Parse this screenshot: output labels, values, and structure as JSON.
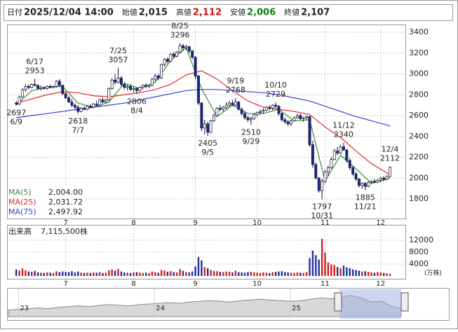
{
  "header": {
    "items": [
      {
        "label": "日付",
        "value": "2025/12/04 14:00",
        "color": "#222"
      },
      {
        "label": "始値",
        "value": "2,015",
        "color": "#222"
      },
      {
        "label": "高値",
        "value": "2,112",
        "color": "#d01010"
      },
      {
        "label": "安値",
        "value": "2,006",
        "color": "#108010"
      },
      {
        "label": "終値",
        "value": "2,107",
        "color": "#222"
      }
    ]
  },
  "chart_data": {
    "type": "candlestick",
    "xlim": [
      -3,
      126
    ],
    "xticks": [
      {
        "value": 16,
        "label": "7"
      },
      {
        "value": 38,
        "label": "8"
      },
      {
        "value": 58,
        "label": "9"
      },
      {
        "value": 78,
        "label": "10"
      },
      {
        "value": 100,
        "label": "11"
      },
      {
        "value": 118,
        "label": "12"
      }
    ],
    "ylim": [
      1612,
      3474
    ],
    "yticks": [
      1800,
      2000,
      2200,
      2400,
      2600,
      2800,
      3000,
      3200,
      3400
    ],
    "grid": true,
    "up_color": "#ffffff",
    "down_color": "#1c2a8a",
    "edge_color": "#111133",
    "ohlc": [
      [
        2720,
        2740,
        2697,
        2710
      ],
      [
        2710,
        2790,
        2700,
        2780
      ],
      [
        2780,
        2860,
        2770,
        2850
      ],
      [
        2850,
        2900,
        2830,
        2880
      ],
      [
        2880,
        2900,
        2850,
        2870
      ],
      [
        2870,
        2910,
        2860,
        2900
      ],
      [
        2900,
        2953,
        2880,
        2890
      ],
      [
        2890,
        2900,
        2850,
        2860
      ],
      [
        2860,
        2890,
        2840,
        2870
      ],
      [
        2870,
        2880,
        2850,
        2860
      ],
      [
        2860,
        2890,
        2850,
        2880
      ],
      [
        2880,
        2900,
        2860,
        2870
      ],
      [
        2870,
        2890,
        2860,
        2880
      ],
      [
        2880,
        2940,
        2870,
        2930
      ],
      [
        2930,
        2950,
        2880,
        2890
      ],
      [
        2890,
        2900,
        2800,
        2810
      ],
      [
        2810,
        2830,
        2760,
        2770
      ],
      [
        2770,
        2790,
        2720,
        2730
      ],
      [
        2730,
        2760,
        2680,
        2700
      ],
      [
        2700,
        2720,
        2660,
        2680
      ],
      [
        2680,
        2700,
        2618,
        2640
      ],
      [
        2640,
        2680,
        2630,
        2670
      ],
      [
        2670,
        2690,
        2650,
        2660
      ],
      [
        2660,
        2700,
        2650,
        2690
      ],
      [
        2690,
        2710,
        2670,
        2680
      ],
      [
        2680,
        2720,
        2670,
        2710
      ],
      [
        2710,
        2740,
        2690,
        2700
      ],
      [
        2700,
        2760,
        2690,
        2750
      ],
      [
        2750,
        2770,
        2720,
        2730
      ],
      [
        2730,
        2760,
        2720,
        2750
      ],
      [
        2750,
        2870,
        2740,
        2860
      ],
      [
        2860,
        2960,
        2850,
        2940
      ],
      [
        2940,
        3000,
        2900,
        2920
      ],
      [
        2920,
        3057,
        2910,
        2960
      ],
      [
        2960,
        2980,
        2880,
        2900
      ],
      [
        2900,
        2920,
        2850,
        2870
      ],
      [
        2870,
        2900,
        2840,
        2880
      ],
      [
        2880,
        2900,
        2840,
        2850
      ],
      [
        2850,
        2880,
        2820,
        2860
      ],
      [
        2860,
        2870,
        2806,
        2840
      ],
      [
        2840,
        2880,
        2830,
        2870
      ],
      [
        2870,
        2900,
        2850,
        2890
      ],
      [
        2890,
        2910,
        2860,
        2880
      ],
      [
        2880,
        2900,
        2860,
        2890
      ],
      [
        2890,
        2960,
        2880,
        2950
      ],
      [
        2950,
        3000,
        2930,
        2980
      ],
      [
        2980,
        3000,
        2940,
        2960
      ],
      [
        2960,
        3100,
        2950,
        3090
      ],
      [
        3090,
        3150,
        3070,
        3140
      ],
      [
        3140,
        3160,
        3100,
        3120
      ],
      [
        3120,
        3200,
        3110,
        3190
      ],
      [
        3190,
        3210,
        3150,
        3170
      ],
      [
        3170,
        3220,
        3160,
        3210
      ],
      [
        3210,
        3296,
        3200,
        3270
      ],
      [
        3270,
        3290,
        3220,
        3250
      ],
      [
        3250,
        3280,
        3230,
        3260
      ],
      [
        3260,
        3270,
        3200,
        3220
      ],
      [
        3220,
        3230,
        3140,
        3160
      ],
      [
        3160,
        3170,
        2950,
        2980
      ],
      [
        2980,
        2990,
        2700,
        2720
      ],
      [
        2720,
        2730,
        2450,
        2480
      ],
      [
        2480,
        2560,
        2420,
        2520
      ],
      [
        2520,
        2540,
        2405,
        2440
      ],
      [
        2440,
        2560,
        2430,
        2550
      ],
      [
        2550,
        2620,
        2540,
        2600
      ],
      [
        2600,
        2680,
        2590,
        2670
      ],
      [
        2670,
        2700,
        2640,
        2660
      ],
      [
        2660,
        2690,
        2640,
        2680
      ],
      [
        2680,
        2730,
        2660,
        2700
      ],
      [
        2700,
        2740,
        2680,
        2720
      ],
      [
        2720,
        2750,
        2690,
        2700
      ],
      [
        2700,
        2768,
        2690,
        2730
      ],
      [
        2730,
        2740,
        2650,
        2660
      ],
      [
        2660,
        2680,
        2600,
        2620
      ],
      [
        2620,
        2640,
        2560,
        2580
      ],
      [
        2580,
        2600,
        2540,
        2560
      ],
      [
        2560,
        2590,
        2510,
        2570
      ],
      [
        2570,
        2620,
        2560,
        2610
      ],
      [
        2610,
        2640,
        2590,
        2630
      ],
      [
        2630,
        2660,
        2610,
        2640
      ],
      [
        2640,
        2670,
        2620,
        2650
      ],
      [
        2650,
        2690,
        2640,
        2680
      ],
      [
        2680,
        2700,
        2650,
        2670
      ],
      [
        2670,
        2710,
        2650,
        2700
      ],
      [
        2700,
        2729,
        2670,
        2690
      ],
      [
        2690,
        2700,
        2600,
        2620
      ],
      [
        2620,
        2630,
        2540,
        2560
      ],
      [
        2560,
        2580,
        2520,
        2540
      ],
      [
        2540,
        2560,
        2500,
        2520
      ],
      [
        2520,
        2560,
        2500,
        2550
      ],
      [
        2550,
        2590,
        2540,
        2580
      ],
      [
        2580,
        2620,
        2570,
        2600
      ],
      [
        2600,
        2620,
        2560,
        2570
      ],
      [
        2570,
        2590,
        2540,
        2580
      ],
      [
        2580,
        2600,
        2560,
        2590
      ],
      [
        2590,
        2600,
        2300,
        2320
      ],
      [
        2320,
        2360,
        2100,
        2130
      ],
      [
        2130,
        2150,
        1990,
        2000
      ],
      [
        2000,
        2010,
        1860,
        1880
      ],
      [
        1880,
        1990,
        1797,
        1970
      ],
      [
        1970,
        2080,
        1950,
        2060
      ],
      [
        2060,
        2120,
        2020,
        2100
      ],
      [
        2100,
        2200,
        2090,
        2180
      ],
      [
        2180,
        2280,
        2170,
        2260
      ],
      [
        2260,
        2300,
        2220,
        2240
      ],
      [
        2240,
        2320,
        2230,
        2300
      ],
      [
        2300,
        2340,
        2260,
        2270
      ],
      [
        2270,
        2280,
        2150,
        2170
      ],
      [
        2170,
        2190,
        2080,
        2100
      ],
      [
        2100,
        2120,
        2020,
        2040
      ],
      [
        2040,
        2060,
        1970,
        1990
      ],
      [
        1990,
        2000,
        1910,
        1930
      ],
      [
        1930,
        1960,
        1900,
        1950
      ],
      [
        1950,
        1960,
        1885,
        1920
      ],
      [
        1920,
        1970,
        1910,
        1960
      ],
      [
        1960,
        1980,
        1940,
        1970
      ],
      [
        1970,
        1990,
        1950,
        1960
      ],
      [
        1960,
        1990,
        1950,
        1980
      ],
      [
        1980,
        2010,
        1960,
        2000
      ],
      [
        2000,
        2020,
        1970,
        1990
      ],
      [
        1990,
        2030,
        1980,
        2015
      ],
      [
        2015,
        2112,
        2006,
        2107
      ]
    ],
    "ma_x": [
      0,
      5,
      10,
      15,
      20,
      25,
      30,
      35,
      40,
      45,
      50,
      55,
      60,
      65,
      70,
      75,
      80,
      85,
      90,
      95,
      100,
      105,
      110,
      115,
      120,
      121
    ],
    "series": [
      {
        "name": "MA(5)",
        "color": "#3a8f3a",
        "values": [
          2700,
          2840,
          2870,
          2880,
          2720,
          2680,
          2730,
          2910,
          2860,
          2920,
          3130,
          3250,
          2860,
          2590,
          2700,
          2620,
          2620,
          2660,
          2550,
          2560,
          1970,
          2220,
          2090,
          1950,
          1990,
          2004
        ],
        "value_labels": [
          null,
          null,
          null,
          null,
          null,
          null,
          null,
          null,
          null,
          null,
          null,
          null,
          null,
          null,
          null,
          null,
          null,
          null,
          null,
          null,
          null,
          null,
          null,
          null,
          null,
          "2,004.00"
        ]
      },
      {
        "name": "MA(25)",
        "color": "#e02a2a",
        "values": [
          2720,
          2760,
          2800,
          2830,
          2820,
          2790,
          2780,
          2800,
          2820,
          2850,
          2900,
          2990,
          3030,
          2950,
          2840,
          2740,
          2680,
          2660,
          2640,
          2610,
          2490,
          2390,
          2260,
          2140,
          2050,
          2031.72
        ],
        "value_labels": [
          null,
          null,
          null,
          null,
          null,
          null,
          null,
          null,
          null,
          null,
          null,
          null,
          null,
          null,
          null,
          null,
          null,
          null,
          null,
          null,
          null,
          null,
          null,
          null,
          null,
          "2,031.72"
        ]
      },
      {
        "name": "MA(75)",
        "color": "#3344cc",
        "values": [
          2580,
          2600,
          2620,
          2640,
          2660,
          2680,
          2700,
          2720,
          2750,
          2780,
          2810,
          2840,
          2850,
          2850,
          2840,
          2830,
          2820,
          2800,
          2770,
          2740,
          2690,
          2640,
          2590,
          2550,
          2510,
          2497.92
        ],
        "value_labels": [
          null,
          null,
          null,
          null,
          null,
          null,
          null,
          null,
          null,
          null,
          null,
          null,
          null,
          null,
          null,
          null,
          null,
          null,
          null,
          null,
          null,
          null,
          null,
          null,
          null,
          "2,497.92"
        ]
      }
    ],
    "annotations": [
      {
        "date": "6/17",
        "price": 2953,
        "x": 6,
        "pos": "above"
      },
      {
        "date": "6/9",
        "price": 2697,
        "x": 0,
        "pos": "below"
      },
      {
        "date": "7/25",
        "price": 3057,
        "x": 33,
        "pos": "above"
      },
      {
        "date": "7/7",
        "price": 2618,
        "x": 20,
        "pos": "below"
      },
      {
        "date": "8/25",
        "price": 3296,
        "x": 53,
        "pos": "above"
      },
      {
        "date": "8/4",
        "price": 2806,
        "x": 39,
        "pos": "below"
      },
      {
        "date": "9/19",
        "price": 2768,
        "x": 71,
        "pos": "above"
      },
      {
        "date": "9/5",
        "price": 2405,
        "x": 62,
        "pos": "below"
      },
      {
        "date": "10/10",
        "price": 2729,
        "x": 84,
        "pos": "above"
      },
      {
        "date": "9/29",
        "price": 2510,
        "x": 76,
        "pos": "below"
      },
      {
        "date": "11/12",
        "price": 2340,
        "x": 106,
        "pos": "above"
      },
      {
        "date": "10/31",
        "price": 1797,
        "x": 99,
        "pos": "below"
      },
      {
        "date": "12/4",
        "price": 2112,
        "x": 121,
        "pos": "above"
      },
      {
        "date": "11/21",
        "price": 1885,
        "x": 113,
        "pos": "below"
      }
    ],
    "volume": {
      "title": "出来高",
      "label": "7,115,500株",
      "unit": "(万株)",
      "up_color": "#d42020",
      "down_color": "#22309a",
      "ylim": [
        0,
        16700
      ],
      "yticks": [
        4000,
        8000,
        12000
      ],
      "values": [
        2200,
        1800,
        2500,
        1900,
        1500,
        1400,
        1700,
        1200,
        1100,
        1000,
        1200,
        1100,
        1000,
        1600,
        1300,
        1500,
        1400,
        1300,
        1600,
        1200,
        1500,
        1100,
        1000,
        1100,
        1000,
        1200,
        1100,
        1300,
        1000,
        1100,
        1900,
        2200,
        1800,
        2400,
        1500,
        1200,
        1100,
        1000,
        1200,
        1300,
        1100,
        1000,
        1100,
        1000,
        1500,
        1300,
        1100,
        2000,
        1800,
        1400,
        1600,
        1300,
        1200,
        2300,
        1700,
        1300,
        1200,
        1500,
        3200,
        6400,
        5200,
        3000,
        2600,
        2000,
        1700,
        1600,
        1400,
        1300,
        1500,
        1400,
        1200,
        1800,
        1300,
        1200,
        1100,
        1300,
        1400,
        1200,
        1100,
        1000,
        1200,
        1100,
        1000,
        1300,
        1400,
        1500,
        1600,
        1300,
        1200,
        1100,
        1000,
        1200,
        1100,
        1000,
        1300,
        6000,
        8500,
        7000,
        5500,
        12500,
        7800,
        4500,
        3900,
        3700,
        3000,
        2600,
        3500,
        2900,
        2600,
        2200,
        2000,
        1800,
        1500,
        1600,
        1400,
        1200,
        1100,
        1300,
        1200,
        1000,
        900,
        711.55
      ]
    },
    "navigator": {
      "ylim": [
        1500,
        3500
      ],
      "xlim": [
        0,
        39
      ],
      "xticks": [
        {
          "value": 1,
          "label": "23"
        },
        {
          "value": 14.5,
          "label": "24"
        },
        {
          "value": 28,
          "label": "25"
        }
      ],
      "values": [
        2000,
        2050,
        2100,
        2150,
        2100,
        2200,
        2250,
        2300,
        2250,
        2350,
        2400,
        2350,
        2300,
        2400,
        2450,
        2500,
        2550,
        2500,
        2600,
        2650,
        2700,
        2650,
        2600,
        2700,
        2750,
        2800,
        2750,
        2700,
        2650,
        2700,
        2800,
        2900,
        2850,
        2950,
        3100,
        2900,
        2600,
        2650,
        2300,
        2100
      ]
    }
  }
}
